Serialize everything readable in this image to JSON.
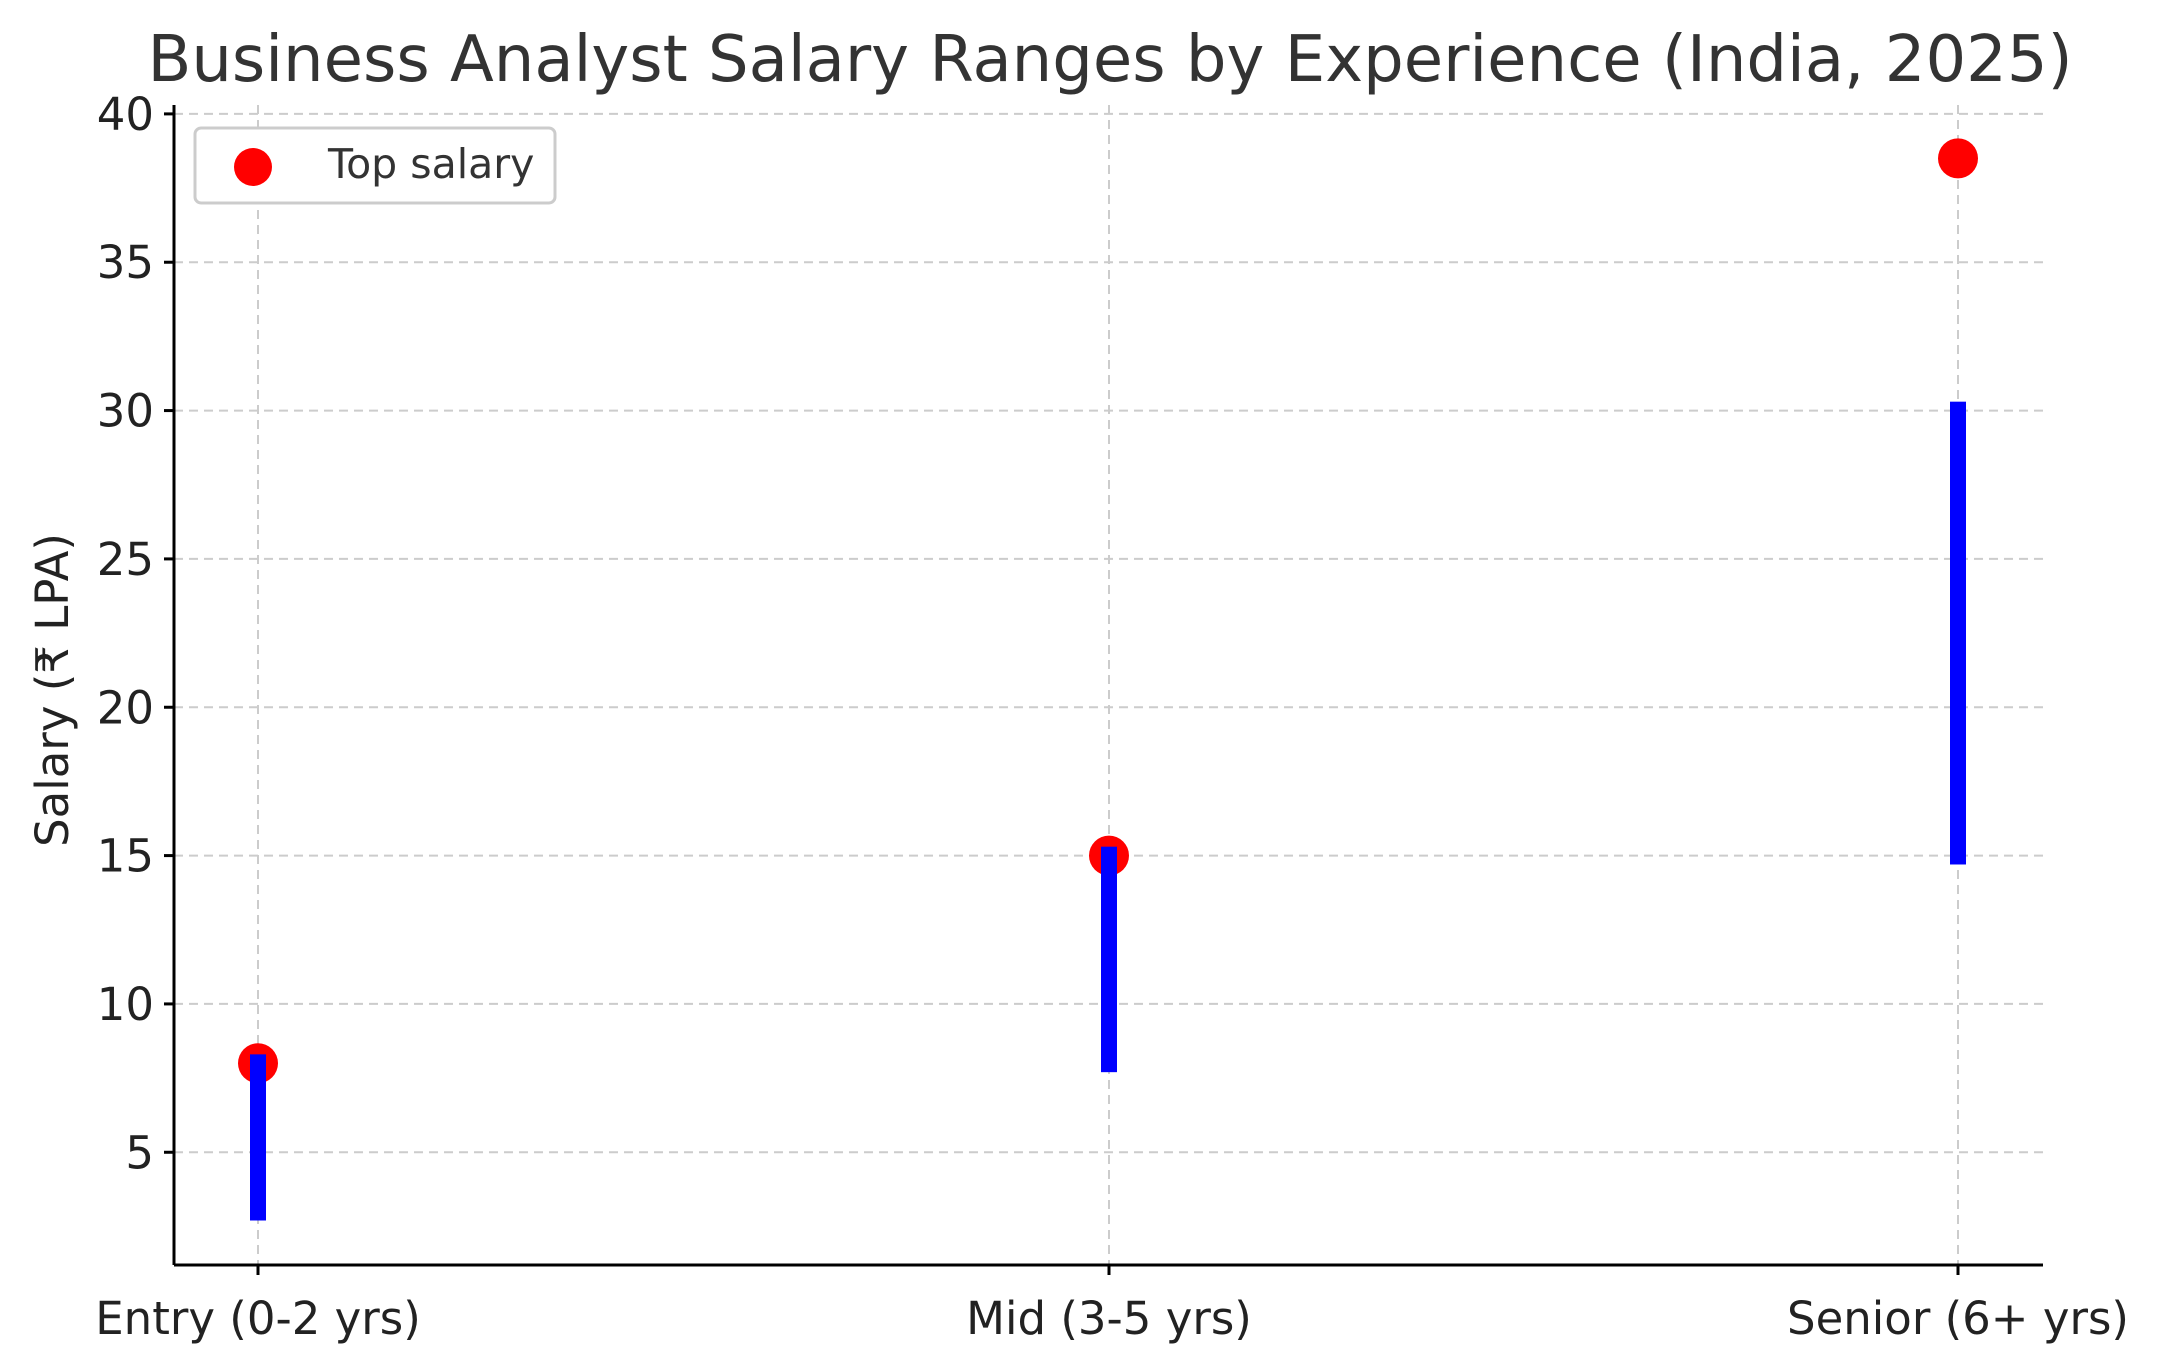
{
  "chart_data": {
    "type": "scatter",
    "title": "Business Analyst Salary Ranges by Experience (India, 2025)",
    "xlabel": "",
    "ylabel": "Salary (₹ LPA)",
    "categories": [
      "Entry (0-2 yrs)",
      "Mid (3-5 yrs)",
      "Senior (6+ yrs)"
    ],
    "ranges": [
      {
        "category": "Entry (0-2 yrs)",
        "low": 2.7,
        "high": 8.3
      },
      {
        "category": "Mid (3-5 yrs)",
        "low": 7.7,
        "high": 15.3
      },
      {
        "category": "Senior (6+ yrs)",
        "low": 14.7,
        "high": 30.3
      }
    ],
    "series": [
      {
        "name": "Top salary",
        "values": [
          8.0,
          15.0,
          38.5
        ]
      }
    ],
    "ylim": [
      1.2,
      40.3
    ],
    "yticks": [
      "5",
      "10",
      "15",
      "20",
      "25",
      "30",
      "35",
      "40"
    ],
    "grid": true,
    "legend": "top-left",
    "colors": {
      "range_bar": "#0000ff",
      "top_marker": "#ff0000",
      "grid": "#cccccc",
      "title": "#333333"
    }
  }
}
